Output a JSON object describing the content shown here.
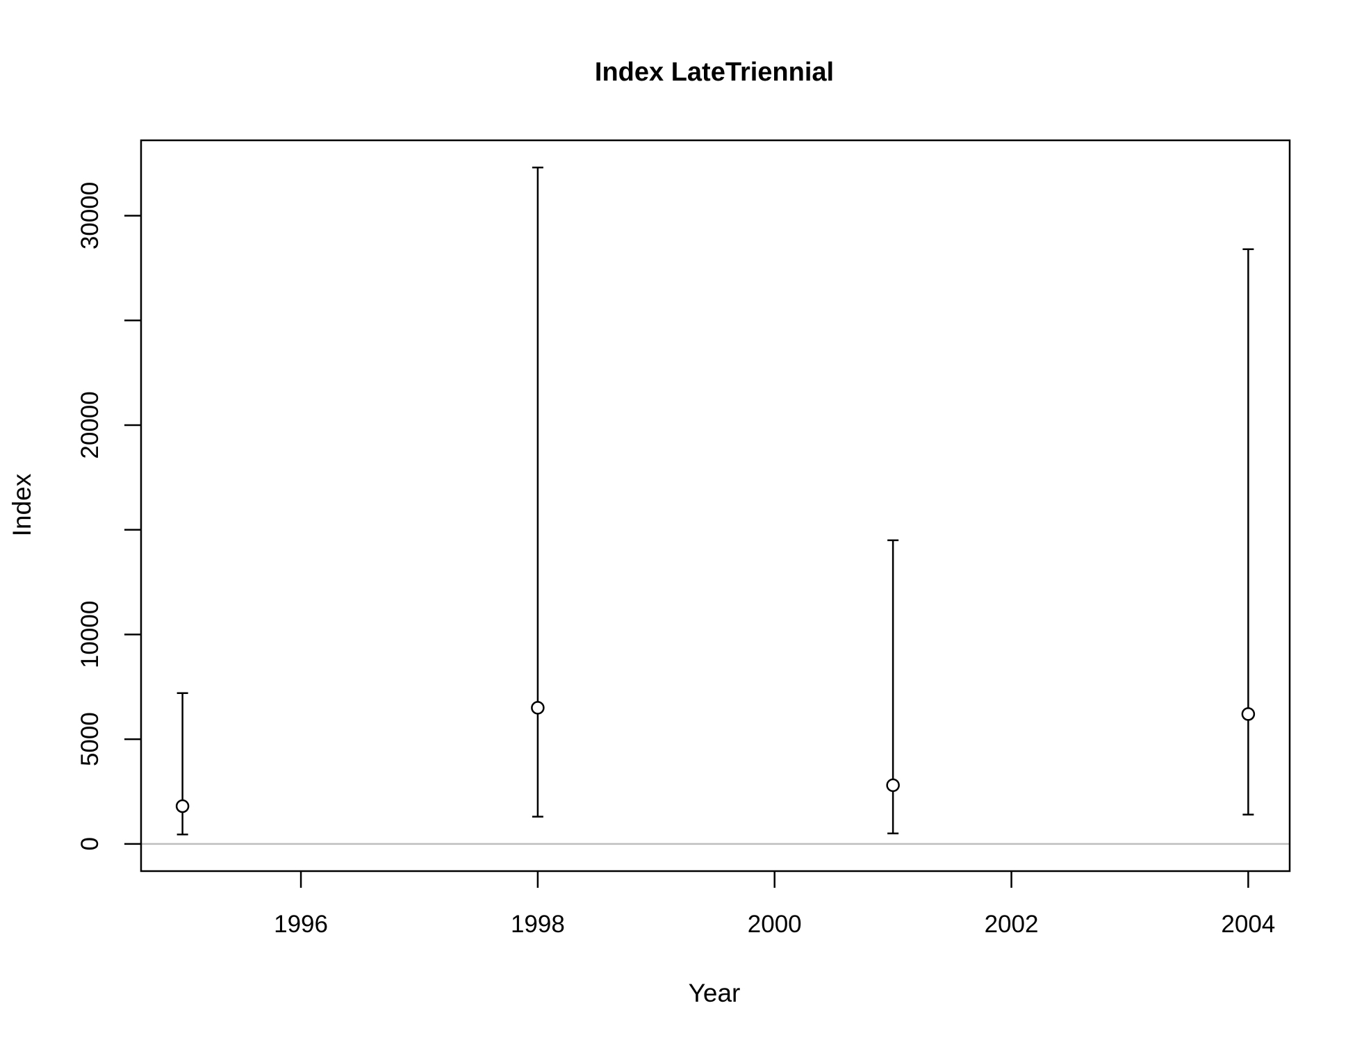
{
  "chart_data": {
    "type": "scatter",
    "title": "Index LateTriennial",
    "xlabel": "Year",
    "ylabel": "Index",
    "xlim": [
      1994.65,
      2004.35
    ],
    "ylim": [
      -1300,
      33600
    ],
    "x_ticks": [
      1996,
      1998,
      2000,
      2002,
      2004
    ],
    "x_tick_labels": [
      "1996",
      "1998",
      "2000",
      "2002",
      "2004"
    ],
    "y_ticks": [
      0,
      5000,
      10000,
      15000,
      20000,
      25000,
      30000
    ],
    "y_tick_labels": [
      "0",
      "5000",
      "10000",
      "",
      "20000",
      "",
      "30000"
    ],
    "reference_line": {
      "y": 0,
      "color": "#bebebe"
    },
    "marker": "open-circle",
    "grid": false,
    "points": [
      {
        "x": 1995,
        "y": 1800,
        "lower": 450,
        "upper": 7200
      },
      {
        "x": 1998,
        "y": 6500,
        "lower": 1300,
        "upper": 32300
      },
      {
        "x": 2001,
        "y": 2800,
        "lower": 500,
        "upper": 14500
      },
      {
        "x": 2004,
        "y": 6200,
        "lower": 1400,
        "upper": 28400
      }
    ]
  }
}
